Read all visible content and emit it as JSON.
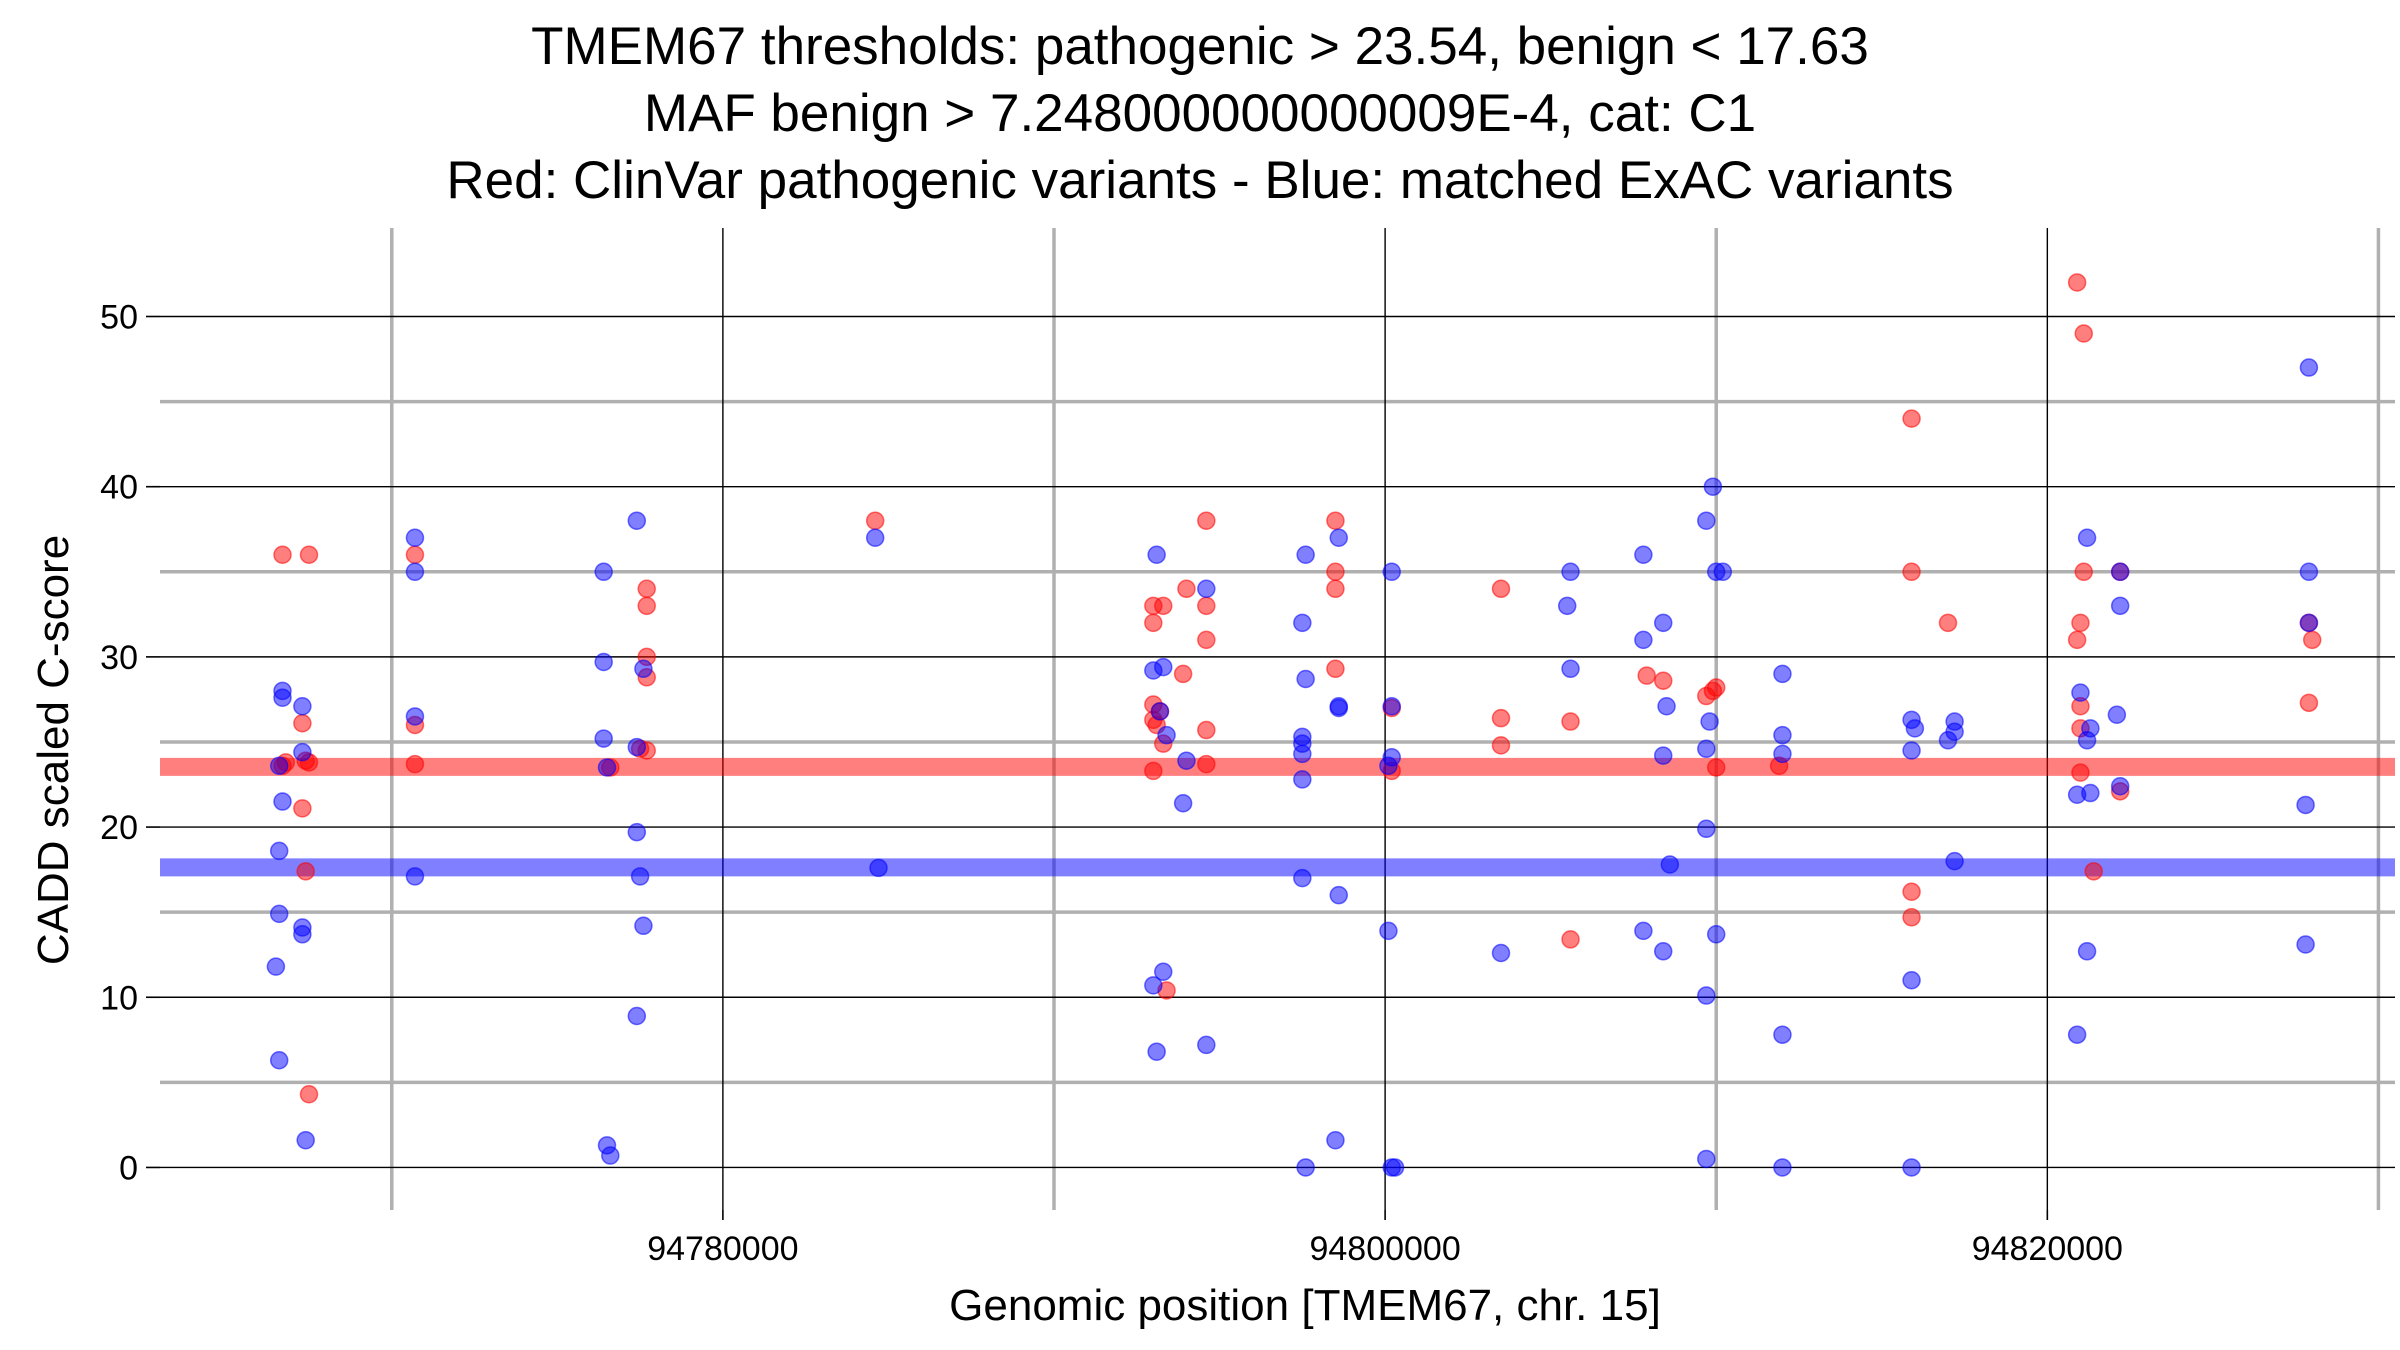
{
  "chart_data": {
    "type": "scatter",
    "title_lines": [
      "TMEM67 thresholds: pathogenic > 23.54, benign < 17.63",
      "MAF benign > 7.248000000000009E-4, cat: C1",
      "Red: ClinVar pathogenic variants - Blue: matched ExAC variants"
    ],
    "xlabel": "Genomic position [TMEM67, chr. 15]",
    "ylabel": "CADD scaled C-score",
    "xlim": [
      94763000,
      94830500
    ],
    "ylim": [
      -2.5,
      55.2
    ],
    "x_ticks": [
      94780000,
      94800000,
      94820000
    ],
    "x_tick_labels": [
      "94780000",
      "94800000",
      "94820000"
    ],
    "x_minor_grid": [
      94770000,
      94790000,
      94810000,
      94830000
    ],
    "y_ticks": [
      0,
      10,
      20,
      30,
      40,
      50
    ],
    "y_tick_labels": [
      "0",
      "10",
      "20",
      "30",
      "40",
      "50"
    ],
    "y_minor_grid": [
      5,
      15,
      25,
      35,
      45
    ],
    "thresholds": [
      {
        "name": "pathogenic",
        "value": 23.54,
        "color": "#ff0000"
      },
      {
        "name": "benign",
        "value": 17.63,
        "color": "#0000ff"
      }
    ],
    "series": [
      {
        "name": "ClinVar pathogenic variants",
        "color": "#ff0000",
        "points": [
          [
            94766700,
            36.0
          ],
          [
            94767500,
            36.0
          ],
          [
            94766700,
            23.6
          ],
          [
            94766800,
            23.8
          ],
          [
            94767300,
            26.1
          ],
          [
            94767400,
            23.9
          ],
          [
            94767500,
            23.8
          ],
          [
            94767300,
            21.1
          ],
          [
            94767400,
            17.4
          ],
          [
            94767500,
            4.3
          ],
          [
            94770700,
            36.0
          ],
          [
            94770700,
            26.0
          ],
          [
            94770700,
            23.7
          ],
          [
            94776600,
            23.5
          ],
          [
            94777500,
            24.6
          ],
          [
            94777700,
            34.0
          ],
          [
            94777700,
            33.0
          ],
          [
            94777700,
            30.0
          ],
          [
            94777700,
            28.8
          ],
          [
            94777700,
            24.5
          ],
          [
            94784600,
            38.0
          ],
          [
            94793000,
            33.0
          ],
          [
            94793300,
            33.0
          ],
          [
            94793000,
            32.0
          ],
          [
            94793000,
            27.2
          ],
          [
            94793000,
            26.3
          ],
          [
            94793100,
            26.0
          ],
          [
            94793200,
            26.8
          ],
          [
            94793000,
            23.3
          ],
          [
            94793300,
            24.9
          ],
          [
            94793400,
            10.4
          ],
          [
            94794000,
            34.0
          ],
          [
            94793900,
            29.0
          ],
          [
            94794600,
            38.0
          ],
          [
            94794600,
            33.0
          ],
          [
            94794600,
            31.0
          ],
          [
            94794600,
            25.7
          ],
          [
            94794600,
            23.7
          ],
          [
            94798500,
            38.0
          ],
          [
            94798500,
            35.0
          ],
          [
            94798500,
            34.0
          ],
          [
            94798500,
            29.3
          ],
          [
            94800200,
            27.0
          ],
          [
            94800200,
            23.3
          ],
          [
            94803500,
            34.0
          ],
          [
            94803500,
            26.4
          ],
          [
            94803500,
            24.8
          ],
          [
            94805600,
            26.2
          ],
          [
            94805600,
            13.4
          ],
          [
            94807900,
            28.9
          ],
          [
            94808400,
            28.6
          ],
          [
            94809700,
            27.7
          ],
          [
            94809900,
            28.0
          ],
          [
            94810000,
            28.2
          ],
          [
            94810000,
            23.5
          ],
          [
            94811900,
            23.6
          ],
          [
            94815900,
            44.0
          ],
          [
            94815900,
            35.0
          ],
          [
            94815900,
            16.2
          ],
          [
            94815900,
            14.7
          ],
          [
            94817000,
            32.0
          ],
          [
            94820900,
            52.0
          ],
          [
            94821100,
            49.0
          ],
          [
            94821100,
            35.0
          ],
          [
            94821000,
            32.0
          ],
          [
            94820900,
            31.0
          ],
          [
            94821000,
            27.1
          ],
          [
            94821000,
            25.8
          ],
          [
            94821000,
            23.2
          ],
          [
            94821400,
            17.4
          ],
          [
            94822200,
            35.0
          ],
          [
            94822200,
            22.1
          ],
          [
            94827900,
            32.0
          ],
          [
            94828000,
            31.0
          ],
          [
            94827900,
            27.3
          ]
        ]
      },
      {
        "name": "matched ExAC variants",
        "color": "#0000ff",
        "points": [
          [
            94766700,
            28.0
          ],
          [
            94766700,
            27.6
          ],
          [
            94766600,
            23.6
          ],
          [
            94766700,
            21.5
          ],
          [
            94766600,
            18.6
          ],
          [
            94766600,
            14.9
          ],
          [
            94766500,
            11.8
          ],
          [
            94766600,
            6.3
          ],
          [
            94767300,
            27.1
          ],
          [
            94767300,
            24.4
          ],
          [
            94767300,
            14.1
          ],
          [
            94767300,
            13.7
          ],
          [
            94767400,
            1.6
          ],
          [
            94770700,
            37.0
          ],
          [
            94770700,
            35.0
          ],
          [
            94770700,
            26.5
          ],
          [
            94770700,
            17.1
          ],
          [
            94776400,
            35.0
          ],
          [
            94776400,
            29.7
          ],
          [
            94776400,
            25.2
          ],
          [
            94776500,
            23.5
          ],
          [
            94776500,
            1.3
          ],
          [
            94776600,
            0.7
          ],
          [
            94777400,
            38.0
          ],
          [
            94777400,
            24.7
          ],
          [
            94777400,
            19.7
          ],
          [
            94777600,
            29.3
          ],
          [
            94777500,
            17.1
          ],
          [
            94777600,
            14.2
          ],
          [
            94777400,
            8.9
          ],
          [
            94784600,
            37.0
          ],
          [
            94784700,
            17.6
          ],
          [
            94793100,
            36.0
          ],
          [
            94793000,
            29.2
          ],
          [
            94793300,
            29.4
          ],
          [
            94793200,
            26.8
          ],
          [
            94793400,
            25.4
          ],
          [
            94793000,
            10.7
          ],
          [
            94793300,
            11.5
          ],
          [
            94793100,
            6.8
          ],
          [
            94794000,
            23.9
          ],
          [
            94793900,
            21.4
          ],
          [
            94794600,
            34.0
          ],
          [
            94794600,
            7.2
          ],
          [
            94797600,
            36.0
          ],
          [
            94797500,
            32.0
          ],
          [
            94797600,
            28.7
          ],
          [
            94797500,
            25.3
          ],
          [
            94797500,
            24.9
          ],
          [
            94797500,
            24.3
          ],
          [
            94797500,
            22.8
          ],
          [
            94797500,
            17.0
          ],
          [
            94797600,
            0.0
          ],
          [
            94798600,
            37.0
          ],
          [
            94798600,
            27.1
          ],
          [
            94798600,
            27.0
          ],
          [
            94798600,
            16.0
          ],
          [
            94798500,
            1.6
          ],
          [
            94800200,
            35.0
          ],
          [
            94800200,
            27.1
          ],
          [
            94800200,
            24.1
          ],
          [
            94800100,
            23.6
          ],
          [
            94800100,
            13.9
          ],
          [
            94800200,
            0.0
          ],
          [
            94800300,
            0.0
          ],
          [
            94805600,
            35.0
          ],
          [
            94805500,
            33.0
          ],
          [
            94805600,
            29.3
          ],
          [
            94803500,
            12.6
          ],
          [
            94807800,
            36.0
          ],
          [
            94807800,
            31.0
          ],
          [
            94808400,
            32.0
          ],
          [
            94808500,
            27.1
          ],
          [
            94808400,
            24.2
          ],
          [
            94808600,
            17.8
          ],
          [
            94808400,
            12.7
          ],
          [
            94807800,
            13.9
          ],
          [
            94809900,
            40.0
          ],
          [
            94809700,
            38.0
          ],
          [
            94810000,
            35.0
          ],
          [
            94810200,
            35.0
          ],
          [
            94809800,
            26.2
          ],
          [
            94809700,
            24.6
          ],
          [
            94809700,
            19.9
          ],
          [
            94810000,
            13.7
          ],
          [
            94809700,
            10.1
          ],
          [
            94809700,
            0.5
          ],
          [
            94812000,
            29.0
          ],
          [
            94812000,
            25.4
          ],
          [
            94812000,
            24.3
          ],
          [
            94812000,
            7.8
          ],
          [
            94812000,
            0.0
          ],
          [
            94815900,
            26.3
          ],
          [
            94816000,
            25.8
          ],
          [
            94815900,
            24.5
          ],
          [
            94815900,
            11.0
          ],
          [
            94815900,
            0.0
          ],
          [
            94817200,
            26.2
          ],
          [
            94817200,
            25.6
          ],
          [
            94817000,
            25.1
          ],
          [
            94817200,
            18.0
          ],
          [
            94821200,
            37.0
          ],
          [
            94821000,
            27.9
          ],
          [
            94821300,
            25.8
          ],
          [
            94821200,
            25.1
          ],
          [
            94821300,
            22.0
          ],
          [
            94820900,
            21.9
          ],
          [
            94821200,
            12.7
          ],
          [
            94820900,
            7.8
          ],
          [
            94822200,
            35.0
          ],
          [
            94822200,
            33.0
          ],
          [
            94822100,
            26.6
          ],
          [
            94822200,
            22.4
          ],
          [
            94827900,
            47.0
          ],
          [
            94827900,
            35.0
          ],
          [
            94827900,
            32.0
          ],
          [
            94827800,
            21.3
          ],
          [
            94827800,
            13.1
          ]
        ]
      }
    ]
  }
}
